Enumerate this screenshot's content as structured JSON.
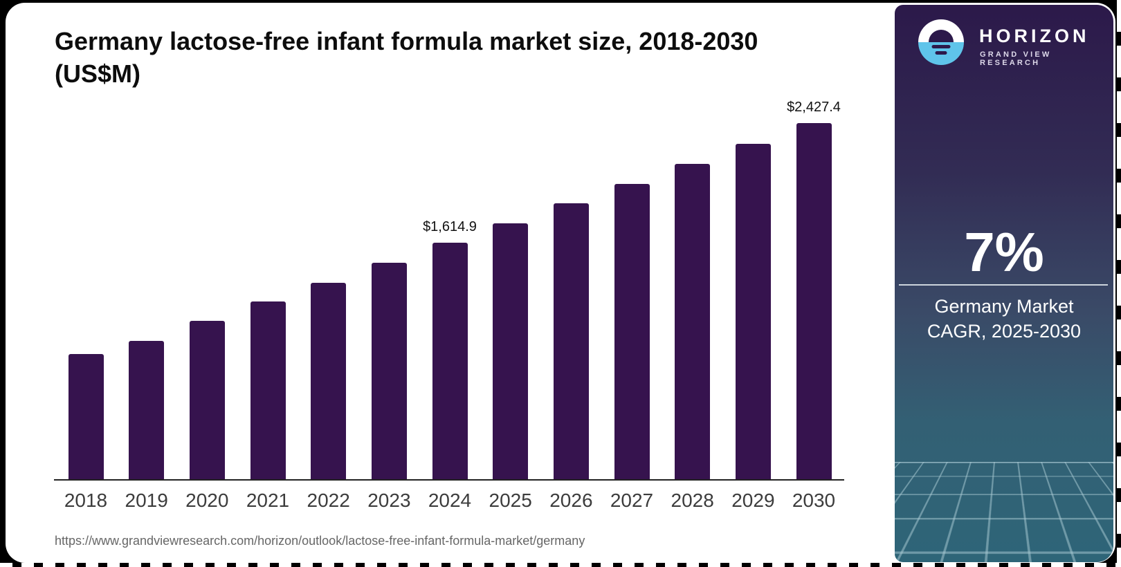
{
  "title": "Germany lactose-free infant formula market size, 2018-2030 (US$M)",
  "source_url": "https://www.grandviewresearch.com/horizon/outlook/lactose-free-infant-formula-market/germany",
  "brand": {
    "name": "HORIZON",
    "tagline": "GRAND VIEW RESEARCH",
    "stat_value": "7%",
    "stat_label_line1": "Germany Market",
    "stat_label_line2": "CAGR, 2025-2030"
  },
  "colors": {
    "bar": "#36134e",
    "axis": "#222222",
    "panel_top": "#2c194a",
    "panel_bottom": "#2e6578",
    "logo_blue": "#5fc4ea"
  },
  "chart_data": {
    "type": "bar",
    "title": "Germany lactose-free infant formula market size, 2018-2030 (US$M)",
    "unit": "US$M",
    "categories": [
      2018,
      2019,
      2020,
      2021,
      2022,
      2023,
      2024,
      2025,
      2026,
      2027,
      2028,
      2029,
      2030
    ],
    "values": [
      857,
      946,
      1083,
      1215,
      1342,
      1478,
      1614.9,
      1747,
      1883,
      2015,
      2152,
      2288,
      2427.4
    ],
    "value_labels": {
      "2024": "$1,614.9",
      "2030": "$2,427.4"
    },
    "ylim": [
      0,
      2600
    ],
    "grid": false,
    "legend": null,
    "bar_color": "#36134e"
  }
}
